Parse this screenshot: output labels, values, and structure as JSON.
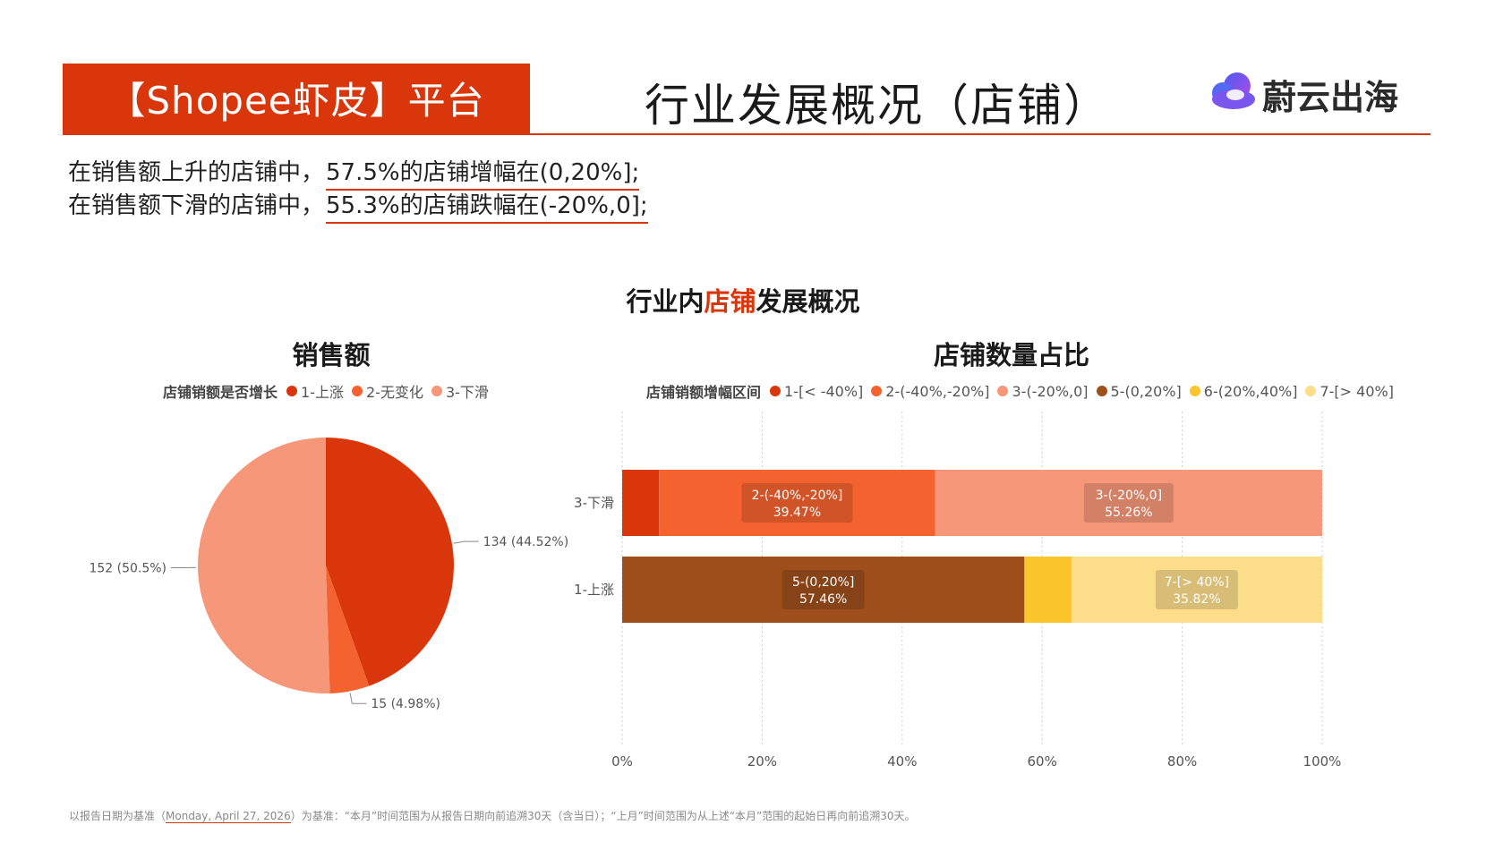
{
  "header": {
    "platform_label": "【Shopee虾皮】平台",
    "title": "行业发展概况（店铺）",
    "brand_name": "蔚云出海",
    "brand_icon": "cloud-logo-icon",
    "accent_color": "#d9360b"
  },
  "summary": [
    {
      "prefix": "在销售额上升的店铺中，",
      "highlight": "57.5%的店铺增幅在(0,20%];"
    },
    {
      "prefix": "在销售额下滑的店铺中，",
      "highlight": "55.3%的店铺跌幅在(-20%,0];"
    }
  ],
  "section_title": {
    "before": "行业内",
    "accent": "店铺",
    "after": "发展概况"
  },
  "footnote": {
    "before": "以报告日期为基准（",
    "date": "Monday, April 27, 2026",
    "after": "）为基准：“本月”时间范围为从报告日期向前追溯30天（含当日）；“上月”时间范围为从上述“本月”范围的起始日再向前追溯30天。"
  },
  "chart_data": [
    {
      "type": "pie",
      "title": "销售额",
      "legend_title": "店铺销额是否增长",
      "legend_placement": "top",
      "slices": [
        {
          "name": "1-上涨",
          "value": 134,
          "percent": "44.52%",
          "label": "134 (44.52%)",
          "color": "#d9360b"
        },
        {
          "name": "2-无变化",
          "value": 15,
          "percent": "4.98%",
          "label": "15 (4.98%)",
          "color": "#f4622f"
        },
        {
          "name": "3-下滑",
          "value": 152,
          "percent": "50.5%",
          "label": "152 (50.5%)",
          "color": "#f59778"
        }
      ]
    },
    {
      "type": "bar",
      "orientation": "horizontal",
      "stacked": "percent",
      "title": "店铺数量占比",
      "legend_title": "店铺销额增幅区间",
      "legend_placement": "top",
      "categories": [
        "3-下滑",
        "1-上涨"
      ],
      "xlim": [
        0,
        100
      ],
      "xticks": [
        "0%",
        "20%",
        "40%",
        "60%",
        "80%",
        "100%"
      ],
      "grid": true,
      "series": [
        {
          "name": "1-[< -40%]",
          "color": "#d9360b",
          "values": [
            5.26,
            0
          ]
        },
        {
          "name": "2-(-40%,-20%]",
          "color": "#f4622f",
          "values": [
            39.47,
            0
          ]
        },
        {
          "name": "3-(-20%,0]",
          "color": "#f59778",
          "values": [
            55.26,
            0
          ]
        },
        {
          "name": "5-(0,20%]",
          "color": "#9e4f1c",
          "values": [
            0,
            57.46
          ]
        },
        {
          "name": "6-(20%,40%]",
          "color": "#fbc52c",
          "values": [
            0,
            6.72
          ]
        },
        {
          "name": "7-[> 40%]",
          "color": "#fcdd8a",
          "values": [
            0,
            35.82
          ]
        }
      ],
      "data_labels": [
        {
          "row": 0,
          "series": 1,
          "text": "2-(-40%,-20%]",
          "value_text": "39.47%"
        },
        {
          "row": 0,
          "series": 2,
          "text": "3-(-20%,0]",
          "value_text": "55.26%"
        },
        {
          "row": 1,
          "series": 3,
          "text": "5-(0,20%]",
          "value_text": "57.46%"
        },
        {
          "row": 1,
          "series": 5,
          "text": "7-[> 40%]",
          "value_text": "35.82%"
        }
      ]
    }
  ]
}
